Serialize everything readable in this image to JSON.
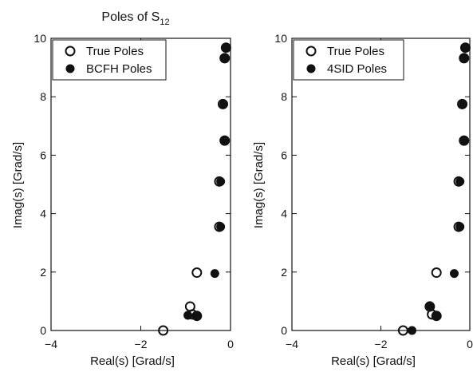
{
  "chart_data": [
    {
      "type": "scatter",
      "title": "Poles of S",
      "title_subscript": "12",
      "xlabel": "Real(s) [Grad/s]",
      "ylabel": "Imag(s) [Grad/s]",
      "xlim": [
        -4,
        0
      ],
      "ylim": [
        0,
        10
      ],
      "xticks": [
        -4,
        -2,
        0
      ],
      "xtick_labels": [
        "−4",
        "−2",
        "0"
      ],
      "yticks": [
        0,
        2,
        4,
        6,
        8,
        10
      ],
      "ytick_labels": [
        "0",
        "2",
        "4",
        "6",
        "8",
        "10"
      ],
      "grid": false,
      "legend_position": "top-left",
      "series": [
        {
          "name": "True Poles",
          "marker": "open-circle",
          "points": [
            {
              "x": -1.5,
              "y": 0.0
            },
            {
              "x": -0.9,
              "y": 0.82
            },
            {
              "x": -0.85,
              "y": 0.55
            },
            {
              "x": -0.75,
              "y": 0.5
            },
            {
              "x": -0.75,
              "y": 1.98
            },
            {
              "x": -0.25,
              "y": 3.55
            },
            {
              "x": -0.25,
              "y": 5.1
            },
            {
              "x": -0.17,
              "y": 7.75
            },
            {
              "x": -0.13,
              "y": 6.5
            },
            {
              "x": -0.13,
              "y": 9.32
            },
            {
              "x": -0.1,
              "y": 9.68
            }
          ]
        },
        {
          "name": "BCFH Poles",
          "marker": "filled-circle",
          "points": [
            {
              "x": -0.95,
              "y": 0.52
            },
            {
              "x": -0.75,
              "y": 0.5
            },
            {
              "x": -0.35,
              "y": 1.95
            },
            {
              "x": -0.22,
              "y": 3.55
            },
            {
              "x": -0.22,
              "y": 5.1
            },
            {
              "x": -0.15,
              "y": 7.75
            },
            {
              "x": -0.12,
              "y": 6.5
            },
            {
              "x": -0.12,
              "y": 9.32
            },
            {
              "x": -0.1,
              "y": 9.68
            }
          ]
        }
      ]
    },
    {
      "type": "scatter",
      "xlabel": "Real(s) [Grad/s]",
      "ylabel": "Imag(s) [Grad/s]",
      "xlim": [
        -4,
        0
      ],
      "ylim": [
        0,
        10
      ],
      "xticks": [
        -4,
        -2,
        0
      ],
      "xtick_labels": [
        "−4",
        "−2",
        "0"
      ],
      "yticks": [
        0,
        2,
        4,
        6,
        8,
        10
      ],
      "ytick_labels": [
        "0",
        "2",
        "4",
        "6",
        "8",
        "10"
      ],
      "grid": false,
      "legend_position": "top-left",
      "series": [
        {
          "name": "True Poles",
          "marker": "open-circle",
          "points": [
            {
              "x": -1.5,
              "y": 0.0
            },
            {
              "x": -0.9,
              "y": 0.82
            },
            {
              "x": -0.85,
              "y": 0.55
            },
            {
              "x": -0.75,
              "y": 0.5
            },
            {
              "x": -0.75,
              "y": 1.98
            },
            {
              "x": -0.25,
              "y": 3.55
            },
            {
              "x": -0.25,
              "y": 5.1
            },
            {
              "x": -0.17,
              "y": 7.75
            },
            {
              "x": -0.13,
              "y": 6.5
            },
            {
              "x": -0.13,
              "y": 9.32
            },
            {
              "x": -0.1,
              "y": 9.68
            }
          ]
        },
        {
          "name": "4SID Poles",
          "marker": "filled-circle",
          "points": [
            {
              "x": -1.3,
              "y": 0.0
            },
            {
              "x": -0.9,
              "y": 0.85
            },
            {
              "x": -0.75,
              "y": 0.5
            },
            {
              "x": -0.35,
              "y": 1.95
            },
            {
              "x": -0.22,
              "y": 3.55
            },
            {
              "x": -0.22,
              "y": 5.1
            },
            {
              "x": -0.15,
              "y": 7.75
            },
            {
              "x": -0.12,
              "y": 6.5
            },
            {
              "x": -0.12,
              "y": 9.32
            },
            {
              "x": -0.1,
              "y": 9.68
            }
          ]
        }
      ]
    }
  ]
}
